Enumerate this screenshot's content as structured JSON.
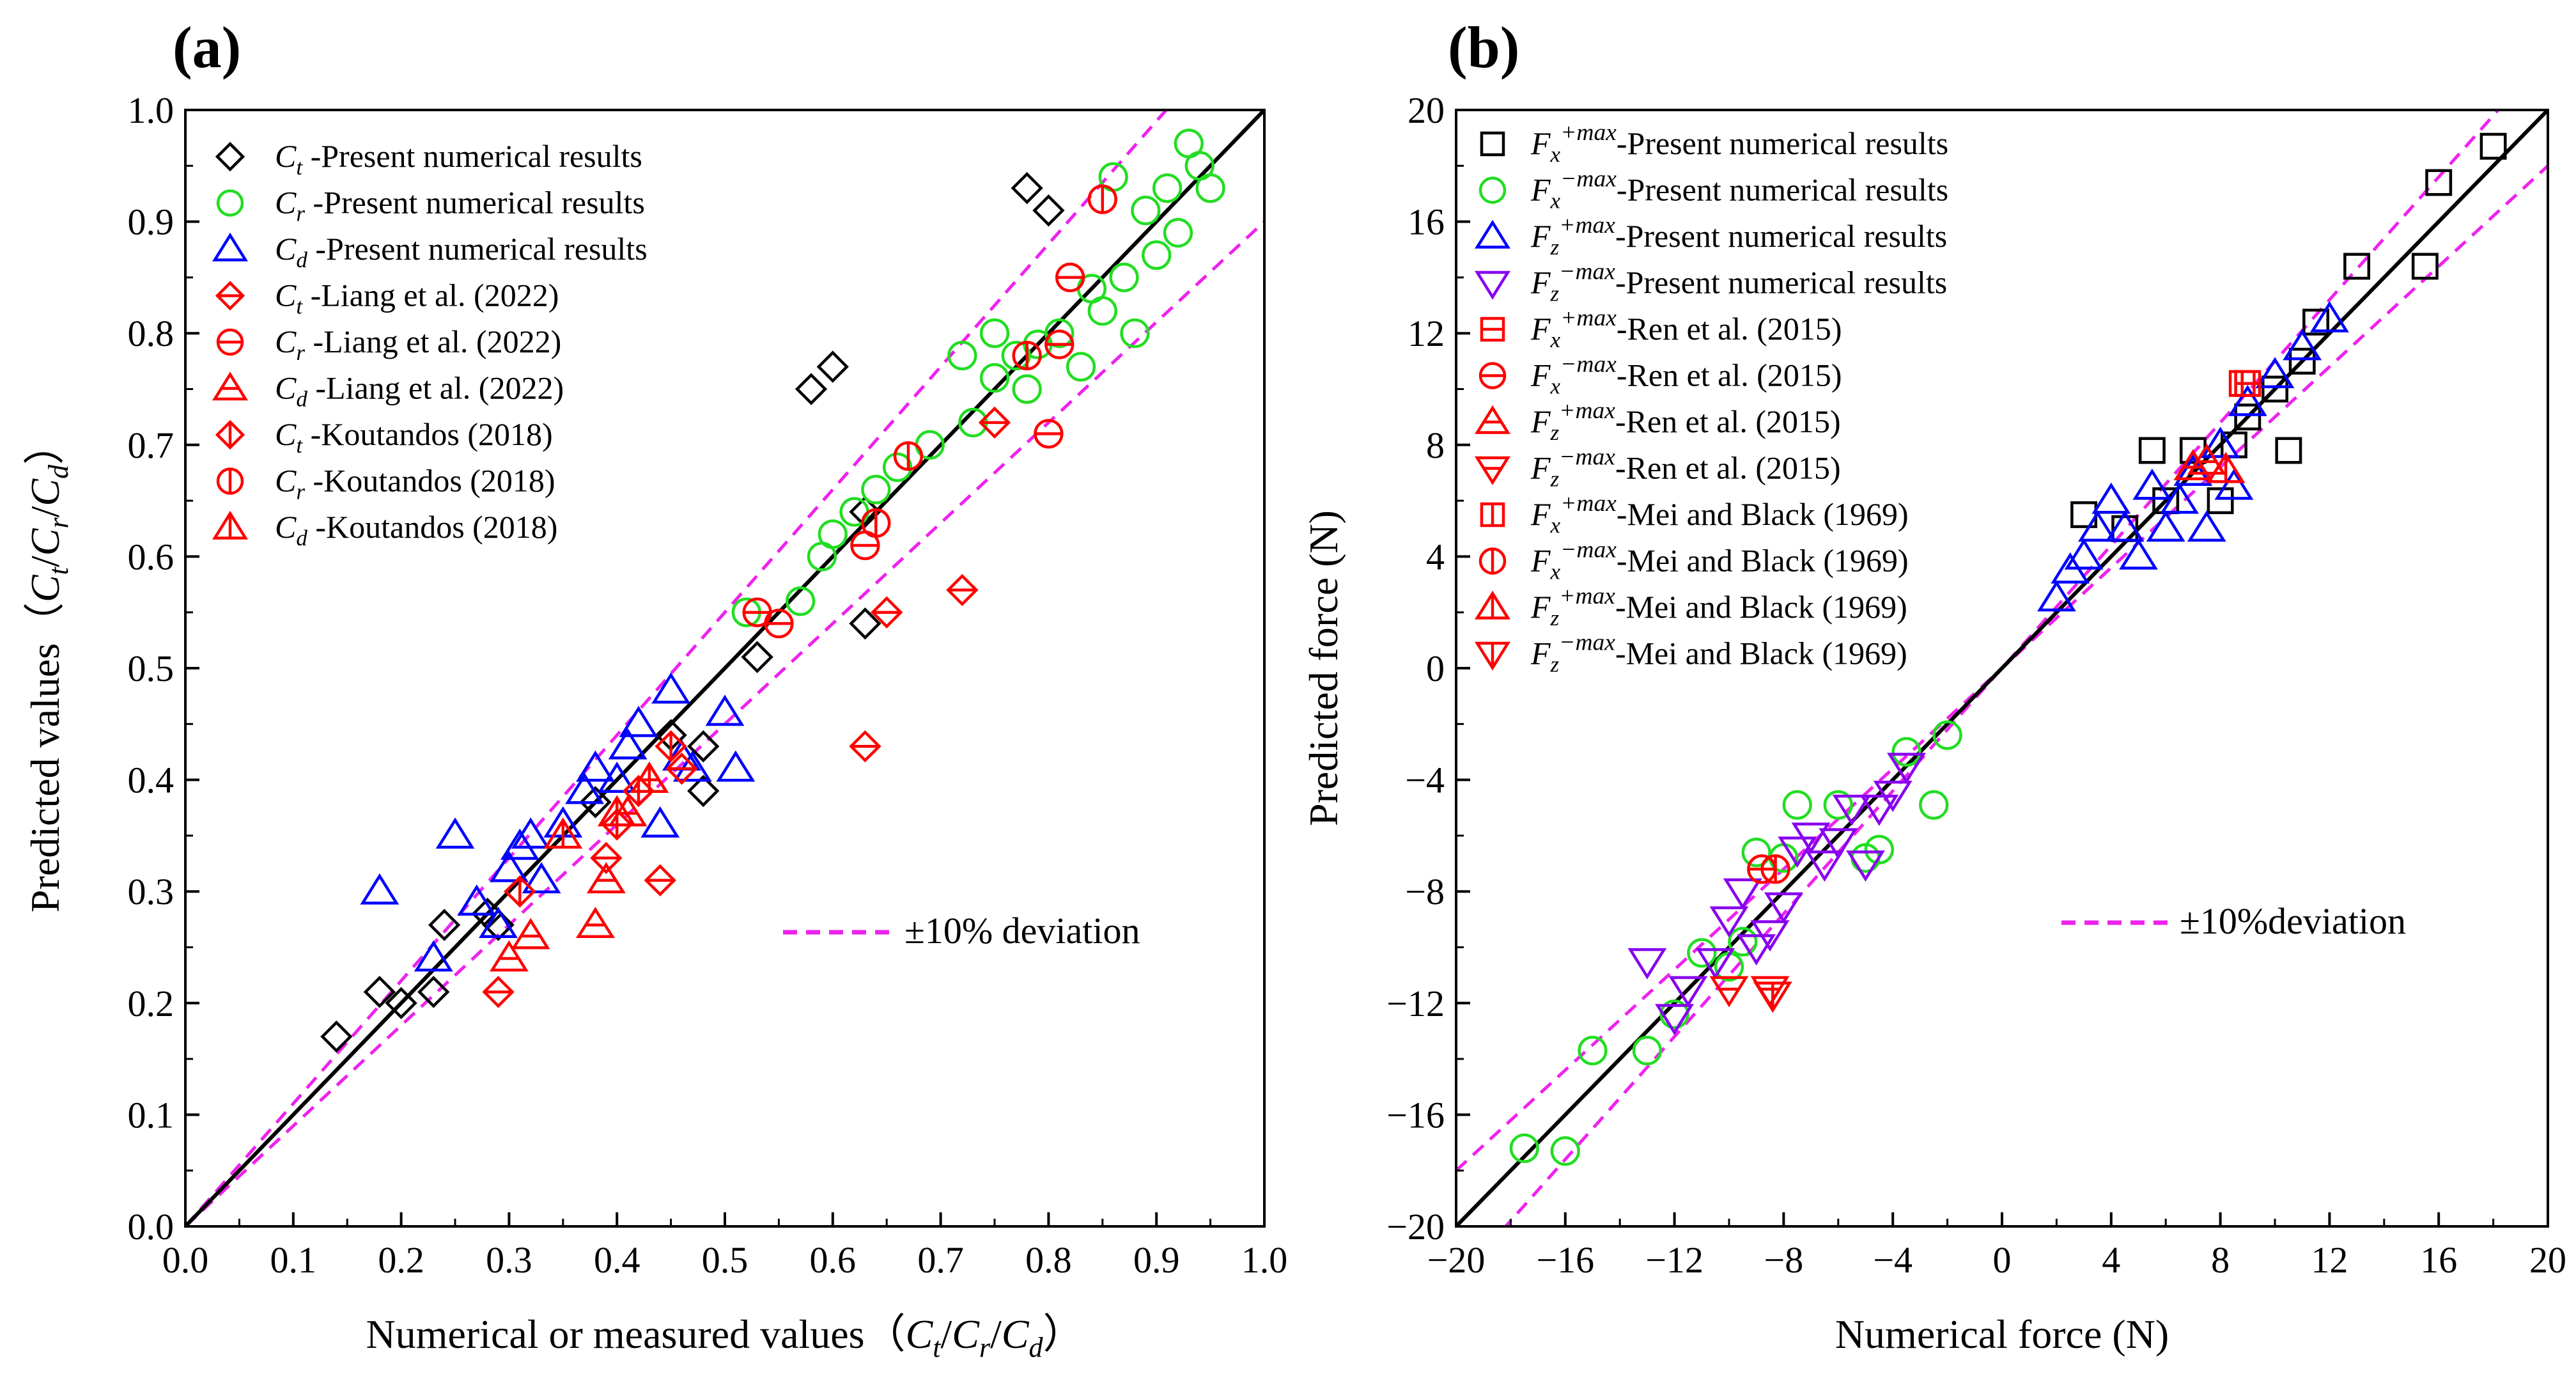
{
  "chart_data": [
    {
      "type": "scatter",
      "panel_label": "(a)",
      "title": "",
      "xlabel": "Numerical or measured values (Ct/Cr/Cd)",
      "ylabel": "Predicted values (Ct/Cr/Cd)",
      "xlim": [
        0.0,
        1.0
      ],
      "ylim": [
        0.0,
        1.0
      ],
      "xticks": [
        "0.0",
        "0.1",
        "0.2",
        "0.3",
        "0.4",
        "0.5",
        "0.6",
        "0.7",
        "0.8",
        "0.9",
        "1.0"
      ],
      "yticks": [
        "0.0",
        "0.1",
        "0.2",
        "0.3",
        "0.4",
        "0.5",
        "0.6",
        "0.7",
        "0.8",
        "0.9",
        "1.0"
      ],
      "deviation_label": "±10% deviation",
      "legend_position": "top-left",
      "series": [
        {
          "name": "Ct -Present numerical results",
          "sym": "C",
          "sub": "t",
          "rest": " -Present numerical results",
          "marker": "diamond",
          "color": "#000000",
          "x": [
            0.14,
            0.18,
            0.2,
            0.23,
            0.24,
            0.28,
            0.29,
            0.38,
            0.45,
            0.48,
            0.48,
            0.53,
            0.58,
            0.6,
            0.63,
            0.63,
            0.78,
            0.8
          ],
          "y": [
            0.17,
            0.21,
            0.2,
            0.21,
            0.27,
            0.28,
            0.27,
            0.38,
            0.44,
            0.43,
            0.39,
            0.51,
            0.75,
            0.77,
            0.64,
            0.54,
            0.93,
            0.91
          ]
        },
        {
          "name": "Cr -Present numerical results",
          "sym": "C",
          "sub": "r",
          "rest": " -Present numerical results",
          "marker": "circle",
          "color": "#22dd22",
          "x": [
            0.52,
            0.57,
            0.59,
            0.6,
            0.62,
            0.64,
            0.66,
            0.69,
            0.72,
            0.73,
            0.75,
            0.75,
            0.77,
            0.78,
            0.79,
            0.81,
            0.83,
            0.84,
            0.85,
            0.86,
            0.87,
            0.88,
            0.89,
            0.9,
            0.91,
            0.92,
            0.93,
            0.94,
            0.95
          ],
          "y": [
            0.55,
            0.56,
            0.6,
            0.62,
            0.64,
            0.66,
            0.68,
            0.7,
            0.78,
            0.72,
            0.76,
            0.8,
            0.78,
            0.75,
            0.79,
            0.8,
            0.77,
            0.84,
            0.82,
            0.94,
            0.85,
            0.8,
            0.91,
            0.87,
            0.93,
            0.89,
            0.97,
            0.95,
            0.93
          ]
        },
        {
          "name": "Cd -Present numerical results",
          "sym": "C",
          "sub": "d",
          "rest": " -Present numerical results",
          "marker": "triangle-up",
          "color": "#0000ff",
          "x": [
            0.18,
            0.23,
            0.25,
            0.27,
            0.29,
            0.3,
            0.31,
            0.32,
            0.33,
            0.35,
            0.37,
            0.38,
            0.4,
            0.41,
            0.42,
            0.44,
            0.45,
            0.46,
            0.47,
            0.5,
            0.51
          ],
          "y": [
            0.3,
            0.24,
            0.35,
            0.29,
            0.27,
            0.32,
            0.34,
            0.35,
            0.31,
            0.36,
            0.39,
            0.41,
            0.4,
            0.43,
            0.45,
            0.36,
            0.48,
            0.42,
            0.41,
            0.46,
            0.41
          ]
        },
        {
          "name": "Ct -Liang et al. (2022)",
          "sym": "C",
          "sub": "t",
          "rest": " -Liang et al. (2022)",
          "marker": "diamond-h",
          "color": "#ff0000",
          "x": [
            0.29,
            0.39,
            0.44,
            0.46,
            0.63,
            0.65,
            0.72,
            0.75
          ],
          "y": [
            0.21,
            0.33,
            0.31,
            0.41,
            0.43,
            0.55,
            0.57,
            0.72
          ]
        },
        {
          "name": "Cr -Liang et al. (2022)",
          "sym": "C",
          "sub": "r",
          "rest": " -Liang et al. (2022)",
          "marker": "circle-h",
          "color": "#ff0000",
          "x": [
            0.53,
            0.55,
            0.63,
            0.8,
            0.81,
            0.82
          ],
          "y": [
            0.55,
            0.54,
            0.61,
            0.71,
            0.79,
            0.85
          ]
        },
        {
          "name": "Cd -Liang et al. (2022)",
          "sym": "C",
          "sub": "d",
          "rest": " -Liang et al. (2022)",
          "marker": "triangle-h",
          "color": "#ff0000",
          "x": [
            0.3,
            0.32,
            0.38,
            0.39,
            0.41,
            0.43
          ],
          "y": [
            0.24,
            0.26,
            0.27,
            0.31,
            0.37,
            0.4
          ]
        },
        {
          "name": "Ct -Koutandos (2018)",
          "sym": "C",
          "sub": "t",
          "rest": " -Koutandos (2018)",
          "marker": "diamond-v",
          "color": "#ff0000",
          "x": [
            0.31,
            0.4,
            0.42,
            0.45
          ],
          "y": [
            0.3,
            0.36,
            0.39,
            0.43
          ]
        },
        {
          "name": "Cr -Koutandos (2018)",
          "sym": "C",
          "sub": "r",
          "rest": " -Koutandos (2018)",
          "marker": "circle-v",
          "color": "#ff0000",
          "x": [
            0.64,
            0.67,
            0.78,
            0.85
          ],
          "y": [
            0.63,
            0.69,
            0.78,
            0.92
          ]
        },
        {
          "name": "Cd -Koutandos (2018)",
          "sym": "C",
          "sub": "d",
          "rest": " -Koutandos (2018)",
          "marker": "triangle-v",
          "color": "#ff0000",
          "x": [
            0.35,
            0.4,
            0.43
          ],
          "y": [
            0.35,
            0.37,
            0.4
          ]
        }
      ]
    },
    {
      "type": "scatter",
      "panel_label": "(b)",
      "title": "",
      "xlabel": "Numerical force (N)",
      "ylabel": "Predicted force (N)",
      "xlim": [
        -20,
        20
      ],
      "ylim": [
        -20,
        20
      ],
      "xticks": [
        "−20",
        "−16",
        "−12",
        "−8",
        "−4",
        "0",
        "4",
        "8",
        "12",
        "16",
        "20"
      ],
      "yticks": [
        "−20",
        "−16",
        "−12",
        "−8",
        "−4",
        "0",
        "4",
        "8",
        "12",
        "16",
        "20"
      ],
      "deviation_label": "±10%deviation",
      "legend_position": "top-left",
      "series": [
        {
          "name": "Fx+max-Present numerical results",
          "sym": "F",
          "sub": "x",
          "sup": "+max",
          "rest": "-Present numerical results",
          "marker": "square",
          "color": "#000000",
          "x": [
            3,
            4.5,
            5.5,
            6,
            7,
            8,
            8.5,
            9,
            10,
            10.5,
            11,
            11.5,
            13,
            15.5,
            16,
            18
          ],
          "y": [
            5.5,
            5,
            7.8,
            6,
            7.8,
            6,
            8,
            9,
            10,
            7.8,
            11,
            12.4,
            14.4,
            14.4,
            17.4,
            18.7
          ]
        },
        {
          "name": "Fx−max-Present numerical results",
          "sym": "F",
          "sub": "x",
          "sup": "−max",
          "rest": "-Present numerical results",
          "marker": "circle",
          "color": "#22dd22",
          "x": [
            -17.5,
            -16,
            -15,
            -13,
            -12,
            -11,
            -10,
            -9.5,
            -9,
            -8,
            -7.5,
            -6,
            -5,
            -4.5,
            -3.5,
            -2.5,
            -2
          ],
          "y": [
            -17.2,
            -17.3,
            -13.7,
            -13.7,
            -12.4,
            -10.2,
            -10.7,
            -9.8,
            -6.6,
            -6.8,
            -4.9,
            -4.9,
            -6.8,
            -6.5,
            -3,
            -4.9,
            -2.4
          ]
        },
        {
          "name": "Fz+max-Present numerical results",
          "sym": "F",
          "sub": "z",
          "sup": "+max",
          "rest": "-Present numerical results",
          "marker": "triangle-up",
          "color": "#0000ff",
          "x": [
            2,
            2.5,
            3,
            3.5,
            4,
            4.5,
            5,
            5.5,
            6,
            6.5,
            7,
            7.5,
            8,
            8.5,
            9,
            10,
            11,
            12
          ],
          "y": [
            2.5,
            3.5,
            4,
            5,
            6,
            5,
            4,
            6.5,
            5,
            6,
            7,
            5,
            8,
            6.5,
            9.5,
            10.5,
            11.5,
            12.5
          ]
        },
        {
          "name": "Fz−max-Present numerical results",
          "sym": "F",
          "sub": "z",
          "sup": "−max",
          "rest": "-Present numerical results",
          "marker": "triangle-down",
          "color": "#8800ee",
          "x": [
            -13,
            -12,
            -11.5,
            -10.5,
            -10,
            -9.5,
            -9,
            -8.5,
            -8,
            -7.5,
            -7,
            -6.5,
            -6,
            -5.5,
            -5,
            -4.5,
            -4,
            -3.5
          ],
          "y": [
            -10.5,
            -12.5,
            -11.5,
            -10.5,
            -9,
            -8,
            -10,
            -9.5,
            -8.5,
            -6.5,
            -6,
            -7,
            -6.2,
            -5,
            -7,
            -5,
            -4.5,
            -3.5
          ]
        },
        {
          "name": "Fx+max-Ren et al. (2015)",
          "sym": "F",
          "sub": "x",
          "sup": "+max",
          "rest": "-Ren et al. (2015)",
          "marker": "square-h",
          "color": "#ff0000",
          "x": [
            9
          ],
          "y": [
            10.2
          ]
        },
        {
          "name": "Fx−max-Ren et al. (2015)",
          "sym": "F",
          "sub": "x",
          "sup": "−max",
          "rest": "-Ren et al. (2015)",
          "marker": "circle-h",
          "color": "#ff0000",
          "x": [
            -8.8
          ],
          "y": [
            -7.2
          ]
        },
        {
          "name": "Fz+max-Ren et al. (2015)",
          "sym": "F",
          "sub": "z",
          "sup": "+max",
          "rest": "-Ren et al. (2015)",
          "marker": "triangle-h",
          "color": "#ff0000",
          "x": [
            7,
            7.5
          ],
          "y": [
            7.2,
            7.4
          ]
        },
        {
          "name": "Fz−max-Ren et al. (2015)",
          "sym": "F",
          "sub": "z",
          "sup": "−max",
          "rest": "-Ren et al. (2015)",
          "marker": "triangle-down-h",
          "color": "#ff0000",
          "x": [
            -10,
            -8.5
          ],
          "y": [
            -11.5,
            -11.5
          ]
        },
        {
          "name": "Fx+max-Mei and Black (1969)",
          "sym": "F",
          "sub": "x",
          "sup": "+max",
          "rest": "-Mei and Black (1969)",
          "marker": "square-v",
          "color": "#ff0000",
          "x": [
            8.8
          ],
          "y": [
            10.2
          ]
        },
        {
          "name": "Fx−max-Mei and Black (1969)",
          "sym": "F",
          "sub": "x",
          "sup": "−max",
          "rest": "-Mei and Black (1969)",
          "marker": "circle-v",
          "color": "#ff0000",
          "x": [
            -8.3
          ],
          "y": [
            -7.2
          ]
        },
        {
          "name": "Fz+max-Mei and Black (1969)",
          "sym": "F",
          "sub": "z",
          "sup": "+max",
          "rest": "-Mei and Black (1969)",
          "marker": "triangle-v",
          "color": "#ff0000",
          "x": [
            8.2
          ],
          "y": [
            7.1
          ]
        },
        {
          "name": "Fz−max-Mei and Black (1969)",
          "sym": "F",
          "sub": "z",
          "sup": "−max",
          "rest": "-Mei and Black (1969)",
          "marker": "triangle-down-v",
          "color": "#ff0000",
          "x": [
            -8.4
          ],
          "y": [
            -11.7
          ]
        }
      ]
    }
  ]
}
